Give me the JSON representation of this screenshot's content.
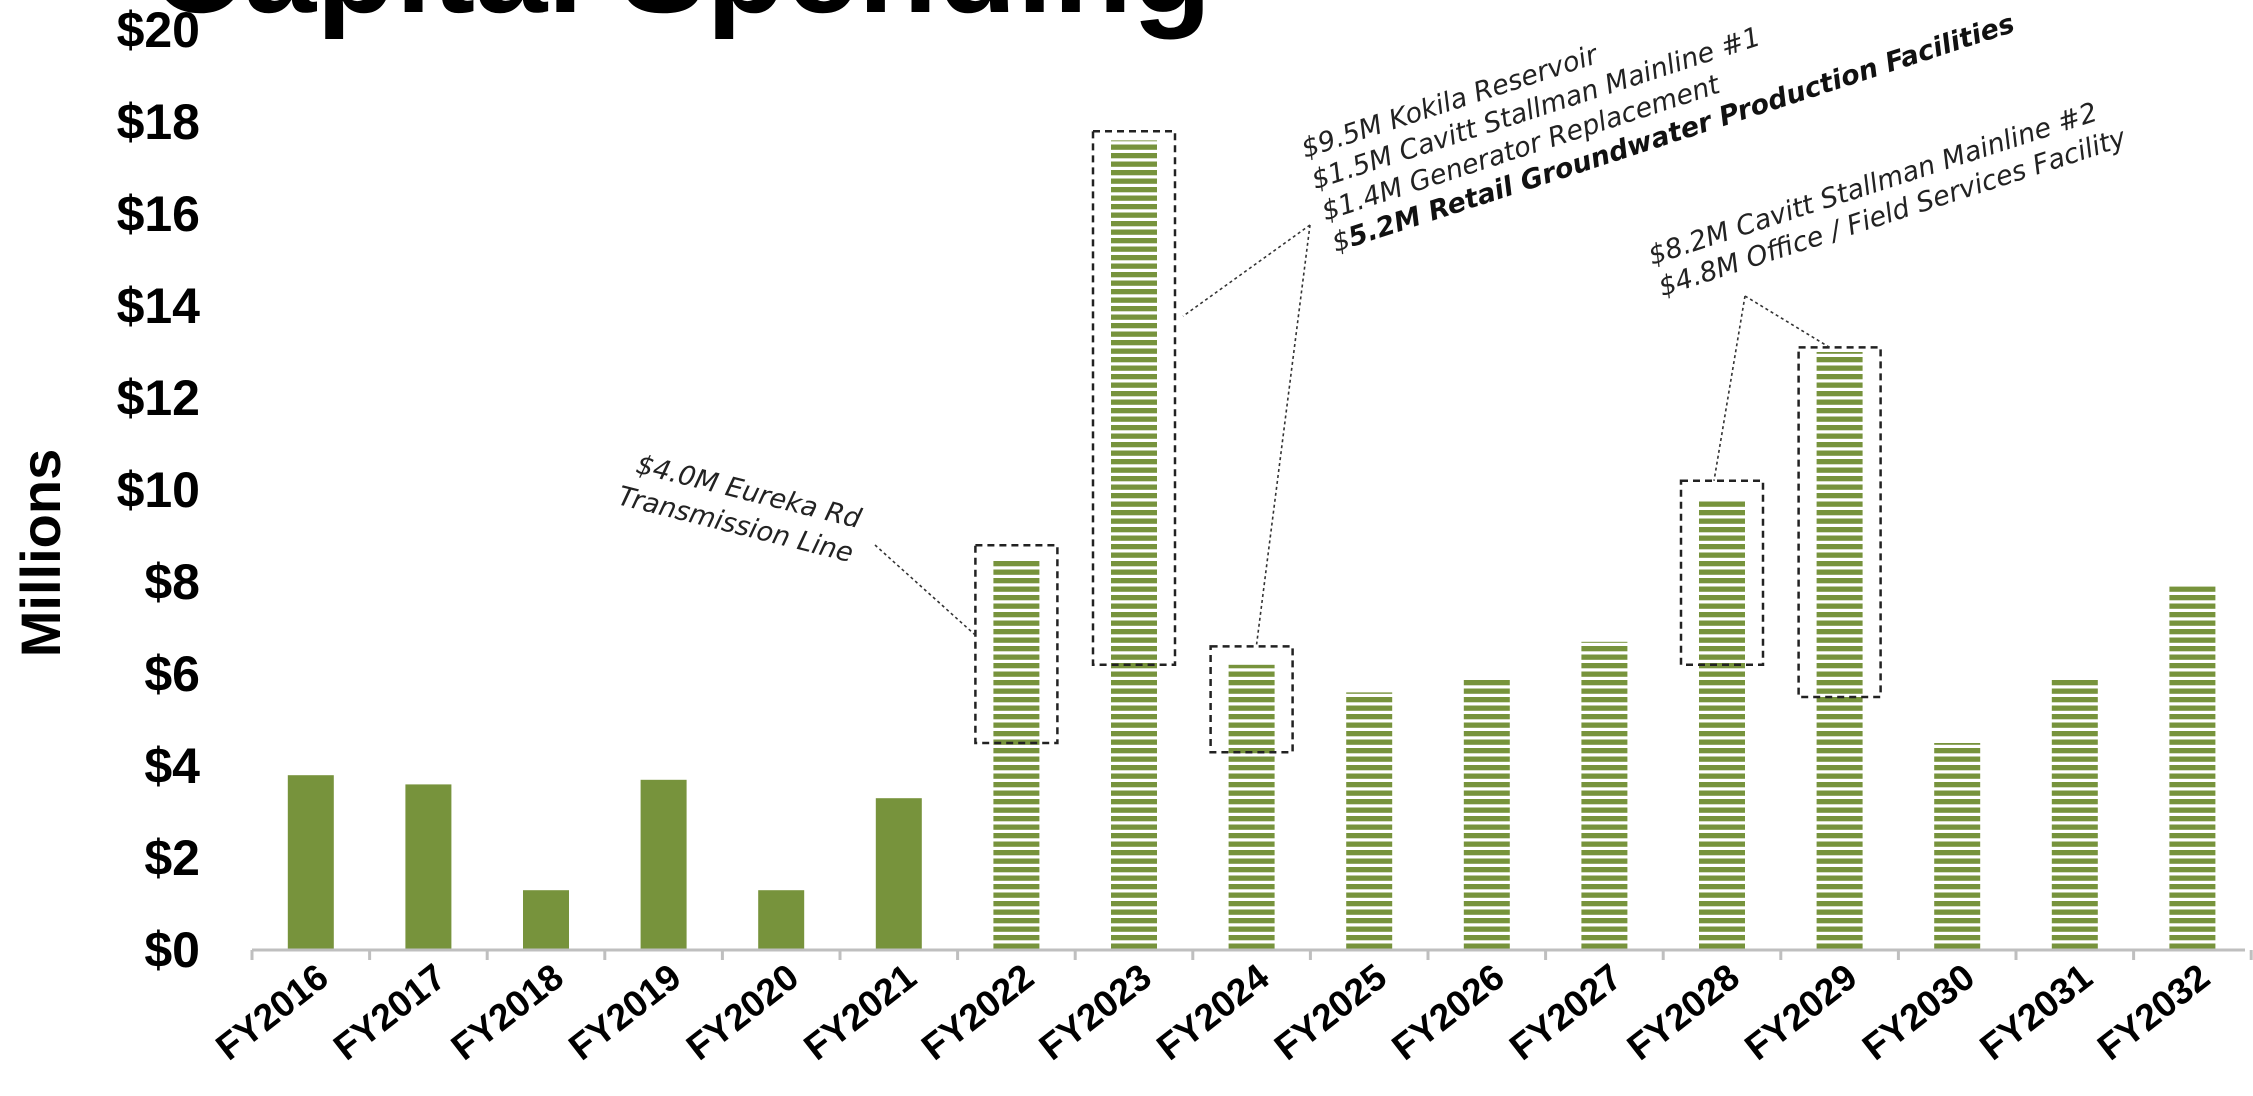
{
  "chart_data": {
    "type": "bar",
    "title": "Capital Spending",
    "ylabel": "Millions",
    "xlabel": "",
    "ylim": [
      0,
      20
    ],
    "yticks": [
      "$0",
      "$2",
      "$4",
      "$6",
      "$8",
      "$10",
      "$12",
      "$14",
      "$16",
      "$18",
      "$20"
    ],
    "grid": false,
    "categories": [
      "FY2016",
      "FY2017",
      "FY2018",
      "FY2019",
      "FY2020",
      "FY2021",
      "FY2022",
      "FY2023",
      "FY2024",
      "FY2025",
      "FY2026",
      "FY2027",
      "FY2028",
      "FY2029",
      "FY2030",
      "FY2031",
      "FY2032"
    ],
    "values": [
      3.8,
      3.6,
      1.3,
      3.7,
      1.3,
      3.3,
      8.5,
      17.6,
      6.2,
      5.6,
      5.9,
      6.7,
      9.8,
      13.0,
      4.5,
      5.9,
      7.9
    ],
    "bar_style": [
      "solid",
      "solid",
      "solid",
      "solid",
      "solid",
      "solid",
      "striped",
      "striped",
      "striped",
      "striped",
      "striped",
      "striped",
      "striped",
      "striped",
      "striped",
      "striped",
      "striped"
    ],
    "colors": {
      "bar": "#77933c",
      "axis": "#bfbfbf",
      "annotation_box": "#222222"
    },
    "annotations": [
      {
        "category": "FY2022",
        "box_range": [
          4.5,
          8.8
        ],
        "lines": [
          {
            "text": "$4.0M Eureka Rd"
          },
          {
            "text": "Transmission Line"
          }
        ]
      },
      {
        "category": "FY2023",
        "box_range": [
          6.2,
          17.8
        ],
        "lines": [
          {
            "text": "$9.5M Kokila Reservoir"
          },
          {
            "text": "$1.5M Cavitt Stallman Mainline #1"
          },
          {
            "text": "$1.4M Generator Replacement"
          },
          {
            "prefix": "$",
            "bold": "5.2M Retail Groundwater Production Facilities"
          }
        ]
      },
      {
        "category": "FY2024",
        "box_range": [
          4.3,
          6.6
        ],
        "lines": []
      },
      {
        "category": "FY2028",
        "box_range": [
          6.2,
          10.2
        ],
        "lines": [
          {
            "text": "$8.2M Cavitt Stallman Mainline #2"
          },
          {
            "text": "$4.8M Office / Field Services Facility"
          }
        ]
      },
      {
        "category": "FY2029",
        "box_range": [
          5.5,
          13.1
        ],
        "lines": []
      }
    ]
  }
}
